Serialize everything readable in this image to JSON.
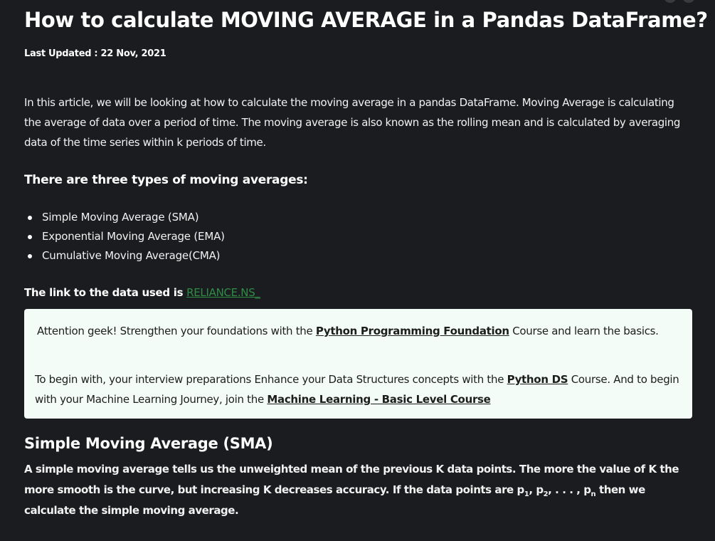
{
  "article": {
    "title": "How to calculate MOVING AVERAGE in a Pandas DataFrame?",
    "last_updated": "Last Updated : 22 Nov, 2021",
    "intro": "In this article, we will be looking at how to calculate the moving average in a pandas DataFrame. Moving Average is calculating the average of data over a period of time. The moving average is also known as the rolling mean and is calculated by averaging data of the time series within k periods of time.",
    "types_heading": "There are three types of moving averages:",
    "types": [
      "Simple Moving Average (SMA)",
      "Exponential Moving Average (EMA)",
      "Cumulative Moving Average(CMA)"
    ],
    "data_link_label": "The link to the data used is ",
    "data_link_text": "RELIANCE.NS_"
  },
  "notice": {
    "p1_prefix": "Attention geek! Strengthen your foundations with the ",
    "p1_link": "Python Programming Foundation",
    "p1_suffix": " Course and learn the basics.",
    "p2_prefix": "To begin with, your interview preparations Enhance your Data Structures concepts with the ",
    "p2_link1": "Python DS",
    "p2_middle": " Course. And to begin with your Machine Learning Journey, join the ",
    "p2_link2": "Machine Learning - Basic Level Course"
  },
  "sma": {
    "heading": "Simple Moving Average (SMA)",
    "body_part1": "A simple moving average tells us the unweighted mean of the previous K data points. The more the value of K the more smooth is the curve, but increasing K decreases accuracy. If the data points are p",
    "sub1": "1",
    "sep1": ", p",
    "sub2": "2",
    "sep2": ", . . . , p",
    "subn": "n",
    "body_part2": " then we calculate the simple moving average."
  },
  "colors": {
    "background": "#1b1c1f",
    "link_green": "#2f8d46",
    "notice_bg": "#f3fcf6"
  }
}
